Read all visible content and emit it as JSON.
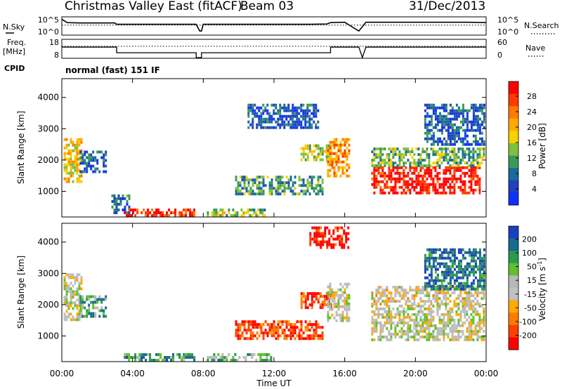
{
  "chart_data": [
    {
      "type": "line",
      "panel": "noise",
      "title": "Christmas Valley East (fitACF)",
      "beam_label": "Beam 03",
      "date_label": "31/Dec/2013",
      "left_label": "N.Sky",
      "right_label": "N.Search",
      "left_ticks": [
        "10^5",
        "10^0"
      ],
      "right_ticks": [
        "10^5",
        "10^0"
      ],
      "x_hours": [
        0,
        0.3,
        1,
        2,
        3,
        3.1,
        4,
        5,
        6,
        7,
        7.6,
        7.8,
        7.9,
        8,
        9,
        10,
        11,
        12,
        13,
        14,
        15,
        15.2,
        16,
        16.8,
        17.2,
        18,
        19,
        20,
        21,
        22,
        23,
        24
      ],
      "n_sky": [
        0.9,
        0.7,
        0.68,
        0.68,
        0.68,
        0.6,
        0.6,
        0.6,
        0.6,
        0.6,
        0.6,
        0.2,
        0.2,
        0.6,
        0.6,
        0.6,
        0.6,
        0.6,
        0.6,
        0.6,
        0.62,
        0.7,
        0.72,
        0.2,
        0.72,
        0.72,
        0.72,
        0.72,
        0.72,
        0.72,
        0.72,
        0.7
      ],
      "n_search_level": 0.55
    },
    {
      "type": "line",
      "panel": "frequency",
      "left_label": "Freq. [MHz]",
      "left_ticks": [
        "18",
        "8"
      ],
      "right_label": "Nave",
      "right_ticks": [
        "60",
        "0"
      ],
      "x_hours": [
        0,
        3.1,
        3.1,
        7.6,
        7.6,
        7.9,
        7.9,
        15.2,
        15.2,
        16.8,
        17.0,
        17.2,
        24
      ],
      "freq_mhz": [
        14.5,
        14.5,
        11,
        11,
        8,
        8,
        11,
        11,
        14.5,
        14.5,
        8,
        14.5,
        14.5
      ],
      "nave_level": 0.7
    },
    {
      "type": "heatmap",
      "panel": "power",
      "cpid_label": "CPID",
      "cpid_text": "normal (fast) 151 IF",
      "ylabel": "Slant Range [km]",
      "ylim": [
        180,
        4600
      ],
      "yticks": [
        "4000",
        "3000",
        "2000",
        "1000"
      ],
      "colorbar_label": "Power [dB]",
      "colorbar_ticks": [
        "28",
        "24",
        "20",
        "16",
        "12",
        "8",
        "4"
      ],
      "colorbar_colors": [
        "#ff0000",
        "#ff3a00",
        "#ff7a00",
        "#ffaa00",
        "#f7d100",
        "#80c040",
        "#3a9a5a",
        "#1a6a9a",
        "#2040c0",
        "#1030ff"
      ],
      "regions": [
        {
          "t0": 0.1,
          "t1": 1.1,
          "r0": 1300,
          "r1": 2700,
          "level": 0.6
        },
        {
          "t0": 1.0,
          "t1": 2.5,
          "r0": 1600,
          "r1": 2300,
          "level": 0.2
        },
        {
          "t0": 2.8,
          "t1": 3.8,
          "r0": 300,
          "r1": 900,
          "level": 0.25
        },
        {
          "t0": 3.5,
          "t1": 7.5,
          "r0": 200,
          "r1": 450,
          "level": 0.9
        },
        {
          "t0": 8.2,
          "t1": 11.5,
          "r0": 200,
          "r1": 450,
          "level": 0.45
        },
        {
          "t0": 9.8,
          "t1": 14.7,
          "r0": 900,
          "r1": 1500,
          "level": 0.35
        },
        {
          "t0": 13.5,
          "t1": 15.2,
          "r0": 2000,
          "r1": 2500,
          "level": 0.5
        },
        {
          "t0": 15.0,
          "t1": 16.2,
          "r0": 1500,
          "r1": 2700,
          "level": 0.7
        },
        {
          "t0": 17.5,
          "t1": 23.6,
          "r0": 950,
          "r1": 1800,
          "level": 0.95
        },
        {
          "t0": 17.5,
          "t1": 23.9,
          "r0": 1800,
          "r1": 2400,
          "level": 0.4
        },
        {
          "t0": 20.5,
          "t1": 23.9,
          "r0": 2500,
          "r1": 3800,
          "level": 0.2
        },
        {
          "t0": 10.5,
          "t1": 14.5,
          "r0": 3000,
          "r1": 3800,
          "level": 0.2
        }
      ]
    },
    {
      "type": "heatmap",
      "panel": "velocity",
      "ylabel": "Slant Range [km]",
      "xlabel": "Time UT",
      "ylim": [
        180,
        4600
      ],
      "yticks": [
        "4000",
        "3000",
        "2000",
        "1000"
      ],
      "xticks": [
        "00:00",
        "04:00",
        "08:00",
        "12:00",
        "16:00",
        "20:00",
        "00:00"
      ],
      "colorbar_label": "Velocity [m s^-1]",
      "colorbar_ticks": [
        "200",
        "100",
        "50",
        "15",
        "-15",
        "-50",
        "-100",
        "-200"
      ],
      "colorbar_colors": [
        "#1a40c0",
        "#1a6a90",
        "#2a9a50",
        "#60c030",
        "#b8b8b8",
        "#c0c0c0",
        "#ffaa00",
        "#ff7a00",
        "#ff4000",
        "#ff0000"
      ],
      "regions": [
        {
          "t0": 0.1,
          "t1": 1.1,
          "r0": 1500,
          "r1": 3000,
          "level": 0.5
        },
        {
          "t0": 1.0,
          "t1": 2.5,
          "r0": 1600,
          "r1": 2300,
          "level": 0.7
        },
        {
          "t0": 3.5,
          "t1": 7.5,
          "r0": 200,
          "r1": 450,
          "level": 0.75
        },
        {
          "t0": 8.2,
          "t1": 12.0,
          "r0": 200,
          "r1": 450,
          "level": 0.65
        },
        {
          "t0": 9.8,
          "t1": 14.7,
          "r0": 900,
          "r1": 1500,
          "level": 0.15
        },
        {
          "t0": 13.5,
          "t1": 15.2,
          "r0": 1900,
          "r1": 2400,
          "level": 0.15
        },
        {
          "t0": 15.0,
          "t1": 16.2,
          "r0": 1500,
          "r1": 2700,
          "level": 0.5
        },
        {
          "t0": 17.5,
          "t1": 23.9,
          "r0": 900,
          "r1": 2000,
          "level": 0.5
        },
        {
          "t0": 17.5,
          "t1": 23.9,
          "r0": 2000,
          "r1": 2600,
          "level": 0.45
        },
        {
          "t0": 20.5,
          "t1": 23.9,
          "r0": 2500,
          "r1": 3800,
          "level": 0.85
        },
        {
          "t0": 14.0,
          "t1": 16.2,
          "r0": 3800,
          "r1": 4500,
          "level": 0.05
        }
      ]
    }
  ]
}
